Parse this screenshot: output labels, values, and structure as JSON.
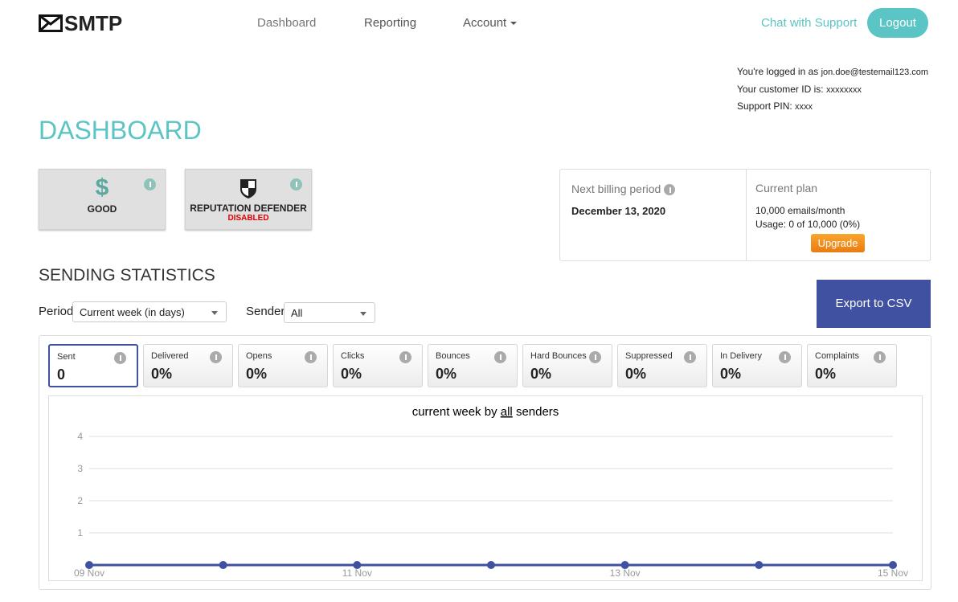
{
  "header": {
    "logo": "SMTP",
    "nav": [
      "Dashboard",
      "Reporting",
      "Account"
    ],
    "support": "Chat with Support",
    "logout": "Logout"
  },
  "account_info": [
    {
      "label": "You're logged in as",
      "value": "jon.doe@testemail123.com"
    },
    {
      "label": "Your customer ID is:",
      "value": "xxxxxxxx"
    },
    {
      "label": "Support PIN:",
      "value": "xxxx"
    }
  ],
  "page_title": "DASHBOARD",
  "status_cards": [
    {
      "icon": "$",
      "label": "GOOD"
    },
    {
      "label": "REPUTATION DEFENDER",
      "status": "DISABLED"
    }
  ],
  "billing": {
    "next_label": "Next billing period",
    "next_value": "December 13, 2020",
    "plan_label": "Current plan",
    "plan_value": "10,000 emails/month",
    "usage": "Usage: 0 of 10,000 (0%)",
    "upgrade": "Upgrade"
  },
  "sending_statistics": {
    "title": "SENDING STATISTICS",
    "period_label": "Period",
    "period_value": "Current week (in days)",
    "sender_label": "Sender",
    "sender_value": "All",
    "export": "Export to CSV"
  },
  "stat_tabs": [
    {
      "label": "Sent",
      "value": "0"
    },
    {
      "label": "Delivered",
      "value": "0%"
    },
    {
      "label": "Opens",
      "value": "0%"
    },
    {
      "label": "Clicks",
      "value": "0%"
    },
    {
      "label": "Bounces",
      "value": "0%"
    },
    {
      "label": "Hard Bounces",
      "value": "0%"
    },
    {
      "label": "Suppressed",
      "value": "0%"
    },
    {
      "label": "In Delivery",
      "value": "0%"
    },
    {
      "label": "Complaints",
      "value": "0%"
    }
  ],
  "chart_data": {
    "type": "line",
    "title_prefix": "current week by",
    "title_link": "all",
    "title_suffix": "senders",
    "categories": [
      "09 Nov",
      null,
      "11 Nov",
      null,
      "13 Nov",
      null,
      "15 Nov"
    ],
    "series": [
      {
        "color": "#3f51a0",
        "values": [
          0,
          0,
          0,
          0,
          0,
          0,
          0
        ]
      }
    ],
    "ylim": [
      0,
      4
    ],
    "yticks": [
      1,
      2,
      3,
      4
    ],
    "grid": true
  }
}
